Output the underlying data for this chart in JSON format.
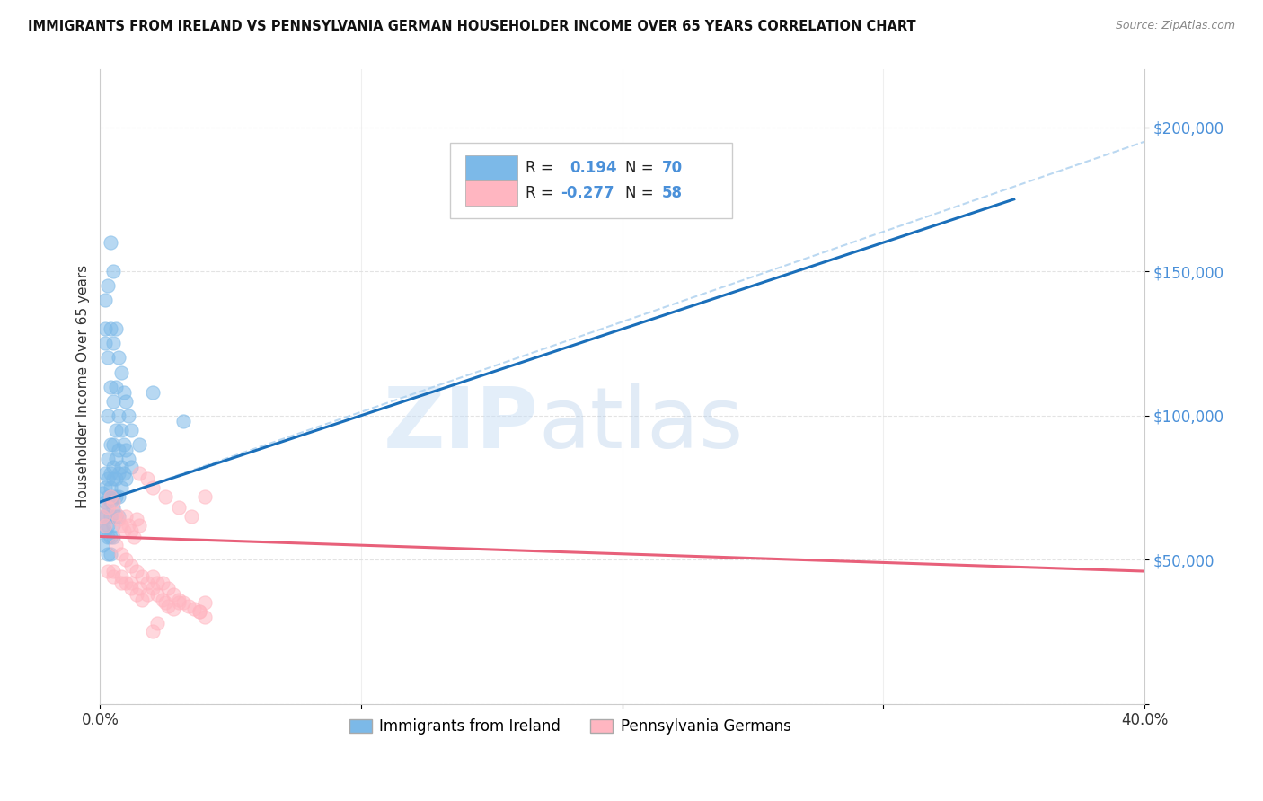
{
  "title": "IMMIGRANTS FROM IRELAND VS PENNSYLVANIA GERMAN HOUSEHOLDER INCOME OVER 65 YEARS CORRELATION CHART",
  "source": "Source: ZipAtlas.com",
  "ylabel": "Householder Income Over 65 years",
  "xlim": [
    0.0,
    0.4
  ],
  "ylim": [
    0,
    220000
  ],
  "yticks": [
    0,
    50000,
    100000,
    150000,
    200000
  ],
  "ytick_labels": [
    "",
    "$50,000",
    "$100,000",
    "$150,000",
    "$200,000"
  ],
  "xticks": [
    0.0,
    0.1,
    0.2,
    0.3,
    0.4
  ],
  "xtick_labels": [
    "0.0%",
    "",
    "",
    "",
    "40.0%"
  ],
  "blue_color": "#7cb9e8",
  "pink_color": "#ffb6c1",
  "trend_blue": "#1a6fba",
  "trend_pink": "#e8607a",
  "dashed_color": "#aacfee",
  "blue_scatter": [
    [
      0.001,
      73000
    ],
    [
      0.001,
      65000
    ],
    [
      0.001,
      60000
    ],
    [
      0.001,
      55000
    ],
    [
      0.002,
      140000
    ],
    [
      0.002,
      130000
    ],
    [
      0.002,
      125000
    ],
    [
      0.002,
      80000
    ],
    [
      0.002,
      75000
    ],
    [
      0.002,
      70000
    ],
    [
      0.002,
      65000
    ],
    [
      0.002,
      60000
    ],
    [
      0.003,
      145000
    ],
    [
      0.003,
      120000
    ],
    [
      0.003,
      100000
    ],
    [
      0.003,
      85000
    ],
    [
      0.003,
      78000
    ],
    [
      0.003,
      72000
    ],
    [
      0.003,
      68000
    ],
    [
      0.003,
      62000
    ],
    [
      0.003,
      58000
    ],
    [
      0.003,
      52000
    ],
    [
      0.004,
      160000
    ],
    [
      0.004,
      130000
    ],
    [
      0.004,
      110000
    ],
    [
      0.004,
      90000
    ],
    [
      0.004,
      80000
    ],
    [
      0.004,
      75000
    ],
    [
      0.004,
      70000
    ],
    [
      0.004,
      65000
    ],
    [
      0.004,
      58000
    ],
    [
      0.004,
      52000
    ],
    [
      0.005,
      150000
    ],
    [
      0.005,
      125000
    ],
    [
      0.005,
      105000
    ],
    [
      0.005,
      90000
    ],
    [
      0.005,
      82000
    ],
    [
      0.005,
      78000
    ],
    [
      0.005,
      72000
    ],
    [
      0.005,
      68000
    ],
    [
      0.005,
      62000
    ],
    [
      0.005,
      58000
    ],
    [
      0.006,
      130000
    ],
    [
      0.006,
      110000
    ],
    [
      0.006,
      95000
    ],
    [
      0.006,
      85000
    ],
    [
      0.006,
      78000
    ],
    [
      0.006,
      72000
    ],
    [
      0.006,
      65000
    ],
    [
      0.007,
      120000
    ],
    [
      0.007,
      100000
    ],
    [
      0.007,
      88000
    ],
    [
      0.007,
      80000
    ],
    [
      0.007,
      72000
    ],
    [
      0.007,
      65000
    ],
    [
      0.008,
      115000
    ],
    [
      0.008,
      95000
    ],
    [
      0.008,
      82000
    ],
    [
      0.008,
      75000
    ],
    [
      0.009,
      108000
    ],
    [
      0.009,
      90000
    ],
    [
      0.009,
      80000
    ],
    [
      0.01,
      105000
    ],
    [
      0.01,
      88000
    ],
    [
      0.01,
      78000
    ],
    [
      0.011,
      100000
    ],
    [
      0.011,
      85000
    ],
    [
      0.012,
      95000
    ],
    [
      0.012,
      82000
    ],
    [
      0.015,
      90000
    ],
    [
      0.02,
      108000
    ],
    [
      0.032,
      98000
    ]
  ],
  "pink_scatter": [
    [
      0.001,
      65000
    ],
    [
      0.002,
      62000
    ],
    [
      0.003,
      68000
    ],
    [
      0.004,
      72000
    ],
    [
      0.005,
      70000
    ],
    [
      0.006,
      66000
    ],
    [
      0.007,
      64000
    ],
    [
      0.008,
      62000
    ],
    [
      0.009,
      60000
    ],
    [
      0.01,
      65000
    ],
    [
      0.011,
      62000
    ],
    [
      0.012,
      60000
    ],
    [
      0.013,
      58000
    ],
    [
      0.014,
      64000
    ],
    [
      0.015,
      62000
    ],
    [
      0.006,
      55000
    ],
    [
      0.008,
      52000
    ],
    [
      0.01,
      50000
    ],
    [
      0.012,
      48000
    ],
    [
      0.014,
      46000
    ],
    [
      0.016,
      44000
    ],
    [
      0.018,
      42000
    ],
    [
      0.02,
      40000
    ],
    [
      0.022,
      38000
    ],
    [
      0.024,
      36000
    ],
    [
      0.026,
      34000
    ],
    [
      0.028,
      33000
    ],
    [
      0.005,
      46000
    ],
    [
      0.008,
      44000
    ],
    [
      0.01,
      42000
    ],
    [
      0.012,
      42000
    ],
    [
      0.015,
      40000
    ],
    [
      0.018,
      38000
    ],
    [
      0.02,
      44000
    ],
    [
      0.022,
      42000
    ],
    [
      0.024,
      42000
    ],
    [
      0.026,
      40000
    ],
    [
      0.028,
      38000
    ],
    [
      0.03,
      36000
    ],
    [
      0.032,
      35000
    ],
    [
      0.034,
      34000
    ],
    [
      0.036,
      33000
    ],
    [
      0.038,
      32000
    ],
    [
      0.04,
      30000
    ],
    [
      0.015,
      80000
    ],
    [
      0.018,
      78000
    ],
    [
      0.02,
      75000
    ],
    [
      0.025,
      72000
    ],
    [
      0.03,
      68000
    ],
    [
      0.035,
      65000
    ],
    [
      0.003,
      46000
    ],
    [
      0.005,
      44000
    ],
    [
      0.008,
      42000
    ],
    [
      0.012,
      40000
    ],
    [
      0.014,
      38000
    ],
    [
      0.016,
      36000
    ],
    [
      0.04,
      72000
    ],
    [
      0.02,
      25000
    ],
    [
      0.022,
      28000
    ],
    [
      0.025,
      35000
    ],
    [
      0.03,
      35000
    ],
    [
      0.038,
      32000
    ],
    [
      0.04,
      35000
    ]
  ],
  "blue_trendline_solid": [
    [
      0.0,
      70000
    ],
    [
      0.35,
      175000
    ]
  ],
  "blue_trendline_dashed": [
    [
      0.0,
      70000
    ],
    [
      0.4,
      195000
    ]
  ],
  "pink_trendline": [
    [
      0.0,
      58000
    ],
    [
      0.4,
      46000
    ]
  ],
  "watermark_zip": "ZIP",
  "watermark_atlas": "atlas",
  "background_color": "#ffffff",
  "grid_color": "#e0e0e0"
}
